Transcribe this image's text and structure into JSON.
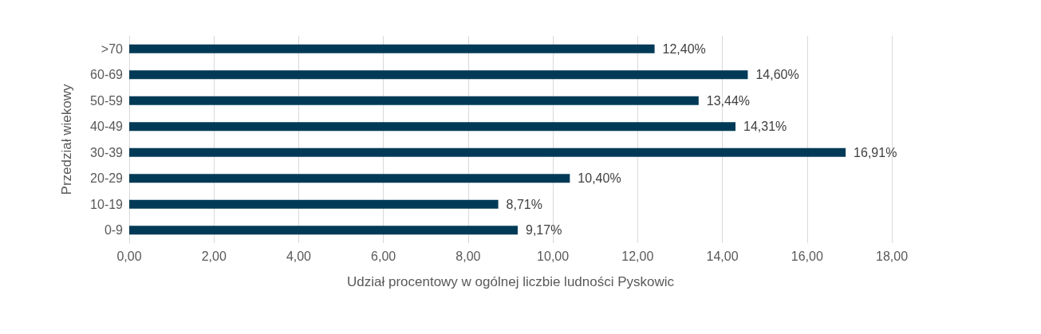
{
  "chart_data": {
    "type": "bar",
    "orientation": "horizontal",
    "xlabel": "Udział procentowy w ogólnej liczbie ludności Pyskowic",
    "ylabel": "Przedział wiekowy",
    "categories": [
      ">70",
      "60-69",
      "50-59",
      "40-49",
      "30-39",
      "20-29",
      "10-19",
      "0-9"
    ],
    "values": [
      12.4,
      14.6,
      13.44,
      14.31,
      16.91,
      10.4,
      8.71,
      9.17
    ],
    "value_labels": [
      "12,40%",
      "14,60%",
      "13,44%",
      "14,31%",
      "16,91%",
      "10,40%",
      "8,71%",
      "9,17%"
    ],
    "color": "#003a57",
    "xlim": [
      0,
      18
    ],
    "xticks": [
      {
        "value": 0,
        "label": "0,00"
      },
      {
        "value": 2,
        "label": "2,00"
      },
      {
        "value": 4,
        "label": "4,00"
      },
      {
        "value": 6,
        "label": "6,00"
      },
      {
        "value": 8,
        "label": "8,00"
      },
      {
        "value": 10,
        "label": "10,00"
      },
      {
        "value": 12,
        "label": "12,00"
      },
      {
        "value": 14,
        "label": "14,00"
      },
      {
        "value": 16,
        "label": "16,00"
      },
      {
        "value": 18,
        "label": "18,00"
      }
    ],
    "grid": "x"
  }
}
